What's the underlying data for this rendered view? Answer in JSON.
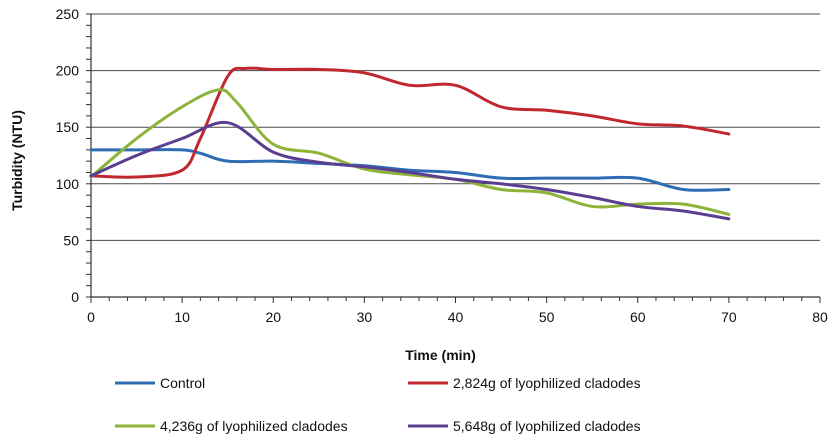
{
  "chart_data": {
    "type": "line",
    "xlabel": "Time (min)",
    "ylabel": "Turbidity  (NTU)",
    "xlim": [
      0,
      80
    ],
    "ylim": [
      0,
      250
    ],
    "x_ticks": [
      0,
      10,
      20,
      30,
      40,
      50,
      60,
      70,
      80
    ],
    "y_ticks": [
      0,
      50,
      100,
      150,
      200,
      250
    ],
    "grid": "horizontal",
    "legend_position": "bottom",
    "series": [
      {
        "name": "Control",
        "color": "#2E6DB4",
        "x": [
          0,
          5,
          10,
          12,
          15,
          20,
          25,
          30,
          35,
          40,
          45,
          50,
          55,
          60,
          65,
          70
        ],
        "y": [
          130,
          130,
          130,
          127,
          120,
          120,
          118,
          116,
          112,
          110,
          105,
          105,
          105,
          105,
          95,
          95
        ]
      },
      {
        "name": "2,824g of lyophilized cladodes",
        "color": "#C0282D",
        "x": [
          0,
          5,
          10,
          12,
          15,
          17,
          20,
          25,
          30,
          35,
          40,
          45,
          50,
          55,
          60,
          65,
          70
        ],
        "y": [
          107,
          106,
          112,
          140,
          195,
          202,
          201,
          201,
          198,
          187,
          187,
          168,
          165,
          160,
          153,
          151,
          144
        ]
      },
      {
        "name": "4,236g  of lyophilized cladodes",
        "color": "#8DB33A",
        "x": [
          0,
          5,
          10,
          14,
          16,
          20,
          25,
          30,
          35,
          40,
          45,
          50,
          55,
          60,
          65,
          70
        ],
        "y": [
          106,
          140,
          168,
          183,
          172,
          135,
          127,
          113,
          108,
          104,
          95,
          92,
          80,
          82,
          82,
          73
        ]
      },
      {
        "name": "5,648g  of lyophilized cladodes",
        "color": "#5B3D91",
        "x": [
          0,
          5,
          10,
          15,
          20,
          25,
          30,
          35,
          40,
          45,
          50,
          55,
          60,
          65,
          70
        ],
        "y": [
          107,
          125,
          140,
          154,
          128,
          119,
          115,
          110,
          104,
          100,
          95,
          88,
          80,
          76,
          69
        ]
      }
    ]
  }
}
